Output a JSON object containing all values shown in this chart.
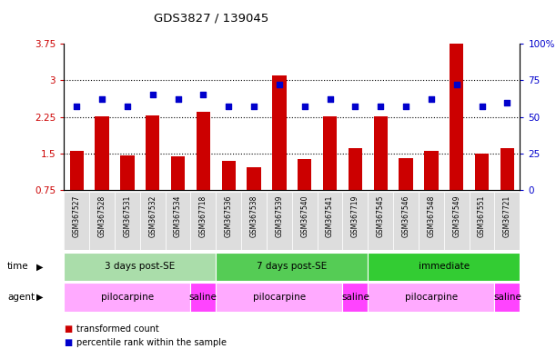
{
  "title": "GDS3827 / 139045",
  "samples": [
    "GSM367527",
    "GSM367528",
    "GSM367531",
    "GSM367532",
    "GSM367534",
    "GSM367718",
    "GSM367536",
    "GSM367538",
    "GSM367539",
    "GSM367540",
    "GSM367541",
    "GSM367719",
    "GSM367545",
    "GSM367546",
    "GSM367548",
    "GSM367549",
    "GSM367551",
    "GSM367721"
  ],
  "bar_values": [
    1.55,
    2.27,
    1.47,
    2.28,
    1.44,
    2.35,
    1.35,
    1.22,
    3.1,
    1.38,
    2.27,
    1.62,
    2.27,
    1.4,
    1.55,
    3.75,
    1.5,
    1.62
  ],
  "dot_values": [
    57,
    62,
    57,
    65,
    62,
    65,
    57,
    57,
    72,
    57,
    62,
    57,
    57,
    57,
    62,
    72,
    57,
    60
  ],
  "bar_color": "#cc0000",
  "dot_color": "#0000cc",
  "ylim_left": [
    0.75,
    3.75
  ],
  "ylim_right": [
    0,
    100
  ],
  "yticks_left": [
    0.75,
    1.5,
    2.25,
    3.0,
    3.75
  ],
  "yticks_right": [
    0,
    25,
    50,
    75,
    100
  ],
  "ytick_labels_left": [
    "0.75",
    "1.5",
    "2.25",
    "3",
    "3.75"
  ],
  "ytick_labels_right": [
    "0",
    "25",
    "50",
    "75",
    "100%"
  ],
  "dotted_lines": [
    3.0,
    2.25,
    1.5
  ],
  "time_groups": [
    {
      "label": "3 days post-SE",
      "start": 0,
      "end": 5,
      "color": "#aaddaa"
    },
    {
      "label": "7 days post-SE",
      "start": 6,
      "end": 11,
      "color": "#55cc55"
    },
    {
      "label": "immediate",
      "start": 12,
      "end": 17,
      "color": "#33cc33"
    }
  ],
  "agent_groups": [
    {
      "label": "pilocarpine",
      "start": 0,
      "end": 4,
      "color": "#ffaaff"
    },
    {
      "label": "saline",
      "start": 5,
      "end": 5,
      "color": "#ff44ff"
    },
    {
      "label": "pilocarpine",
      "start": 6,
      "end": 10,
      "color": "#ffaaff"
    },
    {
      "label": "saline",
      "start": 11,
      "end": 11,
      "color": "#ff44ff"
    },
    {
      "label": "pilocarpine",
      "start": 12,
      "end": 16,
      "color": "#ffaaff"
    },
    {
      "label": "saline",
      "start": 17,
      "end": 17,
      "color": "#ff44ff"
    }
  ],
  "legend_bar_label": "transformed count",
  "legend_dot_label": "percentile rank within the sample",
  "time_label": "time",
  "agent_label": "agent",
  "background_color": "#ffffff",
  "plot_bg_color": "#ffffff",
  "tick_label_color_left": "#cc0000",
  "tick_label_color_right": "#0000cc",
  "xtick_bg_color": "#dddddd"
}
